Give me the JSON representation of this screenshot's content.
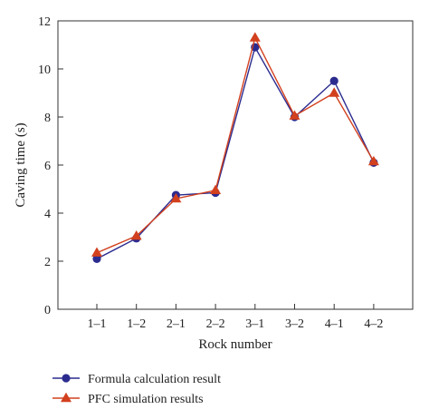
{
  "chart_data": {
    "type": "line",
    "title": "",
    "xlabel": "Rock number",
    "ylabel": "Caving time (s)",
    "categories": [
      "1–1",
      "1–2",
      "2–1",
      "2–2",
      "3–1",
      "3–2",
      "4–1",
      "4–2"
    ],
    "ylim": [
      0,
      12
    ],
    "yticks": [
      0,
      2,
      4,
      6,
      8,
      10,
      12
    ],
    "grid": false,
    "legend_position": "bottom-left",
    "series": [
      {
        "name": "Formula calculation result",
        "marker": "circle",
        "color": "#2b2b8f",
        "values": [
          2.1,
          2.95,
          4.75,
          4.85,
          10.9,
          8.0,
          9.5,
          6.1
        ]
      },
      {
        "name": "PFC simulation results",
        "marker": "triangle",
        "color": "#d2401e",
        "values": [
          2.35,
          3.05,
          4.6,
          4.95,
          11.3,
          8.05,
          9.0,
          6.15
        ]
      }
    ]
  }
}
